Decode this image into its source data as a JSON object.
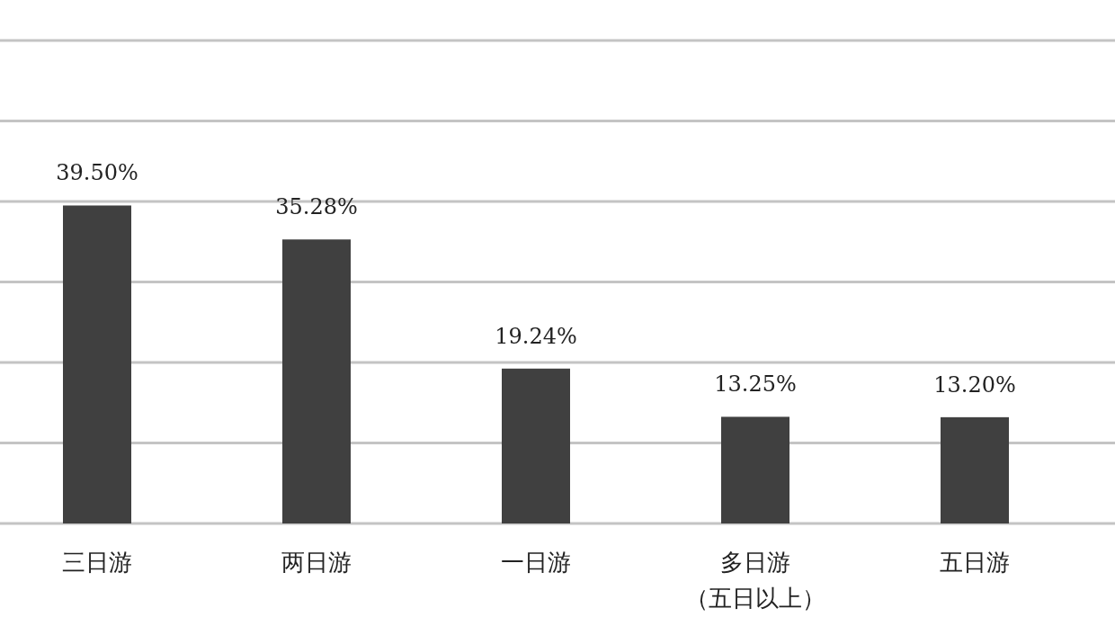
{
  "chart_data": {
    "type": "bar",
    "categories": [
      "三日游",
      "两日游",
      "一日游",
      "多日游（五日以上）",
      "五日游"
    ],
    "values": [
      39.5,
      35.28,
      19.24,
      13.25,
      13.2
    ],
    "value_labels": [
      "39.50%",
      "35.28%",
      "19.24%",
      "13.25%",
      "13.20%"
    ],
    "color": "#404040",
    "ylim": [
      0,
      60
    ],
    "yticks": [
      {
        "value": 0,
        "label": null
      },
      {
        "value": 10,
        "label": null
      },
      {
        "value": 20,
        "label": null
      },
      {
        "value": 30,
        "label": null
      },
      {
        "value": 40,
        "label": null
      },
      {
        "value": 50,
        "label": null
      },
      {
        "value": 60,
        "label": null
      }
    ],
    "grid": "y",
    "tick_labels": "x"
  }
}
